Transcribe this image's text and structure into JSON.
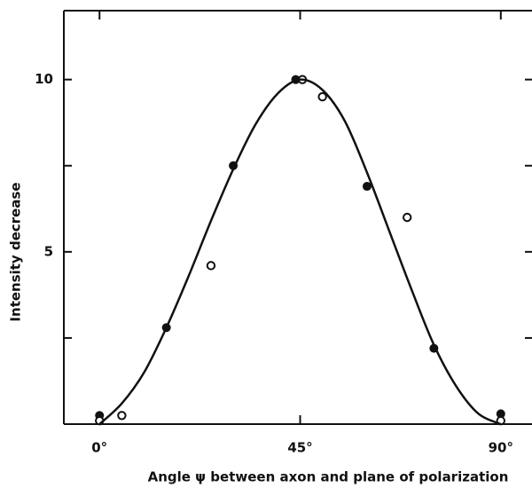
{
  "chart_data": {
    "type": "scatter",
    "xlabel": "Angle ψ between axon and plane of polarization",
    "ylabel": "Intensity decrease",
    "xlim": [
      -8,
      97
    ],
    "ylim": [
      0,
      12
    ],
    "xticks": [
      {
        "value": 0,
        "label": "0°"
      },
      {
        "value": 45,
        "label": "45°"
      },
      {
        "value": 90,
        "label": "90°"
      }
    ],
    "yticks": [
      5,
      10
    ],
    "yminor_ticks": [
      2.5,
      7.5
    ],
    "series": [
      {
        "type": "scatter",
        "marker": "filled",
        "color": "#111",
        "x": [
          0,
          15,
          30,
          44,
          60,
          75,
          90
        ],
        "values": [
          0.25,
          2.8,
          7.5,
          10,
          6.9,
          2.2,
          0.3
        ]
      },
      {
        "type": "scatter",
        "marker": "open",
        "color": "#111",
        "x": [
          0,
          5,
          25,
          45.5,
          50,
          69,
          90
        ],
        "values": [
          0.1,
          0.25,
          4.6,
          10,
          9.5,
          6.0,
          0.1
        ]
      },
      {
        "type": "line",
        "color": "#111",
        "x": [
          0,
          5,
          10,
          15,
          20,
          25,
          30,
          35,
          40,
          45,
          50,
          55,
          60,
          65,
          70,
          75,
          80,
          85,
          90
        ],
        "values": [
          0,
          0.6,
          1.5,
          2.8,
          4.3,
          5.9,
          7.4,
          8.7,
          9.6,
          10,
          9.7,
          8.8,
          7.3,
          5.6,
          3.9,
          2.3,
          1.1,
          0.3,
          0
        ]
      }
    ]
  }
}
